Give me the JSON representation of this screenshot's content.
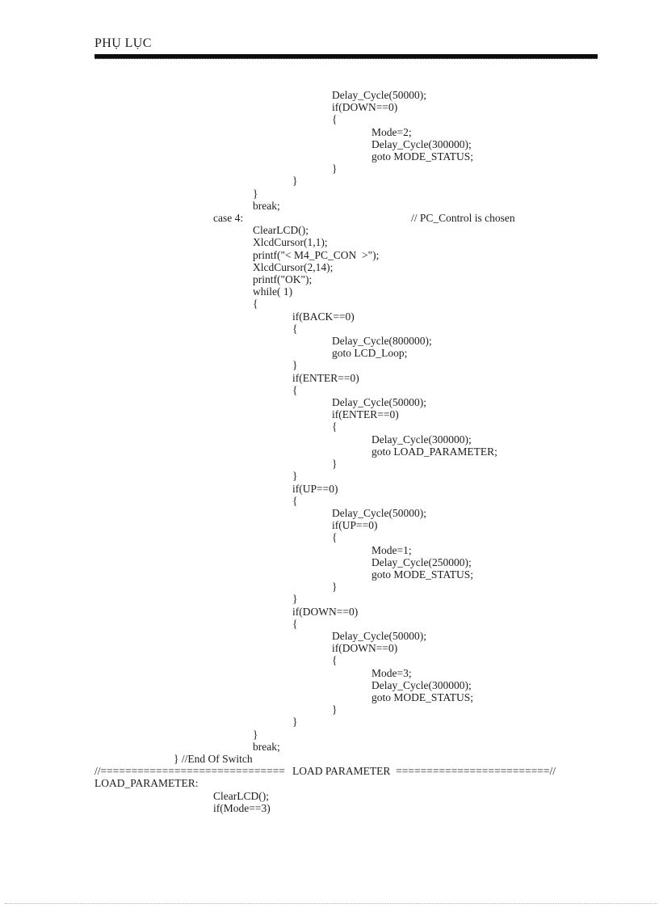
{
  "page": {
    "header_title": "PHỤ LỤC"
  },
  "code": {
    "lines": [
      "\t\t\t\t\t\tDelay_Cycle(50000);",
      "\t\t\t\t\t\tif(DOWN==0)",
      "\t\t\t\t\t\t{",
      "\t\t\t\t\t\t\tMode=2;",
      "\t\t\t\t\t\t\tDelay_Cycle(300000);",
      "\t\t\t\t\t\t\tgoto MODE_STATUS;",
      "\t\t\t\t\t\t}",
      "\t\t\t\t\t}",
      "\t\t\t\t}",
      "\t\t\t\tbreak;",
      "\t\t\tcase 4:\t\t\t\t\t// PC_Control is chosen",
      "\t\t\t\tClearLCD();",
      "\t\t\t\tXlcdCursor(1,1);",
      "\t\t\t\tprintf(\"< M4_PC_CON  >\");",
      "\t\t\t\tXlcdCursor(2,14);",
      "\t\t\t\tprintf(\"OK\");",
      "\t\t\t\twhile( 1)",
      "\t\t\t\t{",
      "\t\t\t\t\tif(BACK==0)",
      "\t\t\t\t\t{",
      "\t\t\t\t\t\tDelay_Cycle(800000);",
      "\t\t\t\t\t\tgoto LCD_Loop;",
      "\t\t\t\t\t}",
      "\t\t\t\t\tif(ENTER==0)",
      "\t\t\t\t\t{",
      "\t\t\t\t\t\tDelay_Cycle(50000);",
      "\t\t\t\t\t\tif(ENTER==0)",
      "\t\t\t\t\t\t{",
      "\t\t\t\t\t\t\tDelay_Cycle(300000);",
      "\t\t\t\t\t\t\tgoto LOAD_PARAMETER;",
      "\t\t\t\t\t\t}",
      "\t\t\t\t\t}",
      "\t\t\t\t\tif(UP==0)",
      "\t\t\t\t\t{",
      "\t\t\t\t\t\tDelay_Cycle(50000);",
      "\t\t\t\t\t\tif(UP==0)",
      "\t\t\t\t\t\t{",
      "\t\t\t\t\t\t\tMode=1;",
      "\t\t\t\t\t\t\tDelay_Cycle(250000);",
      "\t\t\t\t\t\t\tgoto MODE_STATUS;",
      "\t\t\t\t\t\t}",
      "\t\t\t\t\t}",
      "\t\t\t\t\tif(DOWN==0)",
      "\t\t\t\t\t{",
      "\t\t\t\t\t\tDelay_Cycle(50000);",
      "\t\t\t\t\t\tif(DOWN==0)",
      "\t\t\t\t\t\t{",
      "\t\t\t\t\t\t\tMode=3;",
      "\t\t\t\t\t\t\tDelay_Cycle(300000);",
      "\t\t\t\t\t\t\tgoto MODE_STATUS;",
      "\t\t\t\t\t\t}",
      "\t\t\t\t\t}",
      "\t\t\t\t}",
      "\t\t\t\tbreak;",
      "\t\t} //End Of Switch",
      "//==============================\tLOAD PARAMETER  =========================//",
      "LOAD_PARAMETER:",
      "\t\t\tClearLCD();",
      "\t\t\tif(Mode==3)"
    ]
  }
}
